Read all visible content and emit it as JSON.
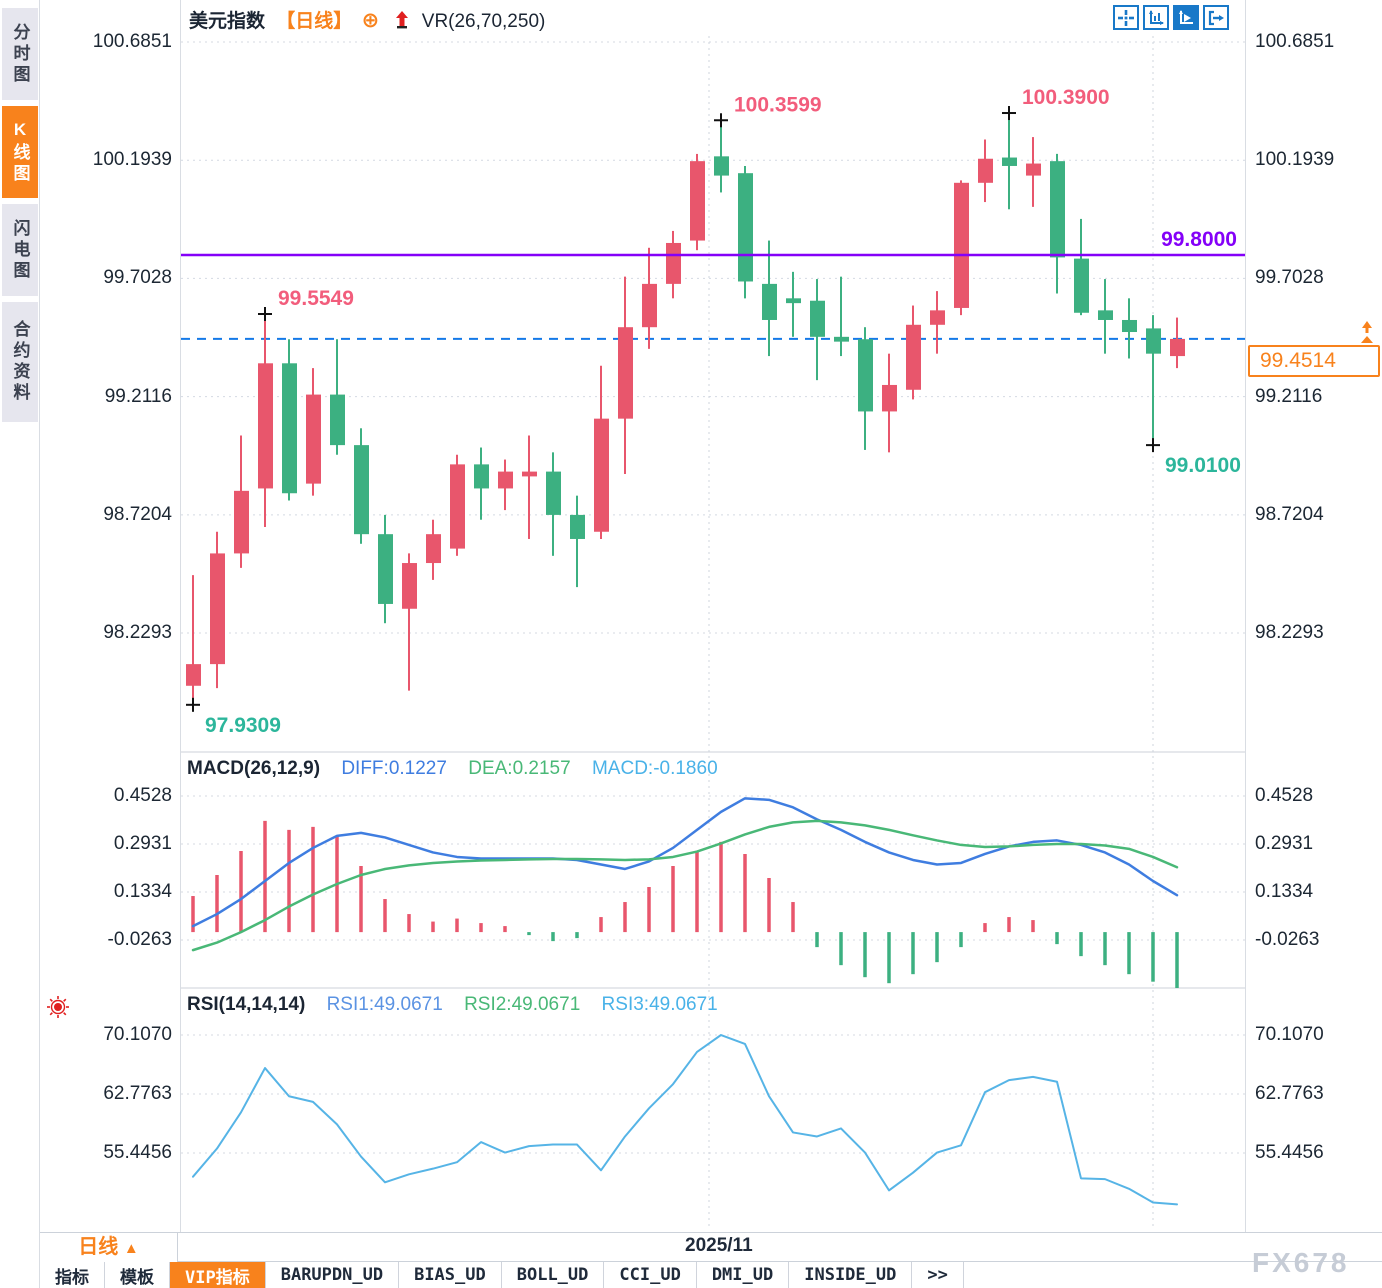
{
  "header": {
    "symbol": "美元指数",
    "period_tag": "【日线】",
    "add_icon": "⊕",
    "indicator_label": "VR(26,70,250)"
  },
  "toolbar": {
    "icons": [
      {
        "name": "crosshair-icon",
        "active": false
      },
      {
        "name": "axis-scale-icon",
        "active": false
      },
      {
        "name": "axis-play-icon",
        "active": true
      },
      {
        "name": "exit-right-icon",
        "active": false
      }
    ]
  },
  "sidebar": {
    "items": [
      {
        "label": "分时图",
        "active": false
      },
      {
        "label": "K线图",
        "active": true
      },
      {
        "label": "闪电图",
        "active": false
      },
      {
        "label": "合约资料",
        "active": false
      }
    ]
  },
  "price_marker": {
    "value": "99.4514"
  },
  "level_line": {
    "label": "99.8000",
    "value": 99.8
  },
  "bottom": {
    "period_label": "日线",
    "period_arrow": "▲",
    "date_label": "2025/11",
    "watermark": "FX678",
    "tabs": [
      {
        "label": "指标",
        "active": false
      },
      {
        "label": "模板",
        "active": false
      },
      {
        "label": "VIP指标",
        "active": true
      },
      {
        "label": "BARUPDN_UD",
        "active": false
      },
      {
        "label": "BIAS_UD",
        "active": false
      },
      {
        "label": "BOLL_UD",
        "active": false
      },
      {
        "label": "CCI_UD",
        "active": false
      },
      {
        "label": "DMI_UD",
        "active": false
      },
      {
        "label": "INSIDE_UD",
        "active": false
      },
      {
        "label": "&gt;&gt;",
        "active": false
      }
    ]
  },
  "colors": {
    "up": "#e8566c",
    "down": "#3cb081",
    "purple_line": "#8400f8",
    "current_line": "#1479e8",
    "orange": "#f8821c",
    "diff_line": "#3f7de0",
    "dea_line": "#49b877",
    "macd_value_text": "#49b2e8",
    "rsi_line": "#56b4e6",
    "annotation_high": "#f25d7c",
    "annotation_low": "#2cb69b",
    "axis_text": "#1c2733",
    "grid": "#d4d9e2",
    "icon_blue": "#1878c8",
    "cross_marker": "#111111"
  },
  "chart_data": [
    {
      "type": "candlestick",
      "title": "美元指数 日线",
      "y_ticks": [
        "100.6851",
        "100.1939",
        "99.7028",
        "99.2116",
        "98.7204",
        "98.2293"
      ],
      "horizontal_level_line": 99.8,
      "current_price_line": 99.4514,
      "annotations": [
        {
          "text": "99.5549",
          "candle_index": 3,
          "at": "high",
          "kind": "high"
        },
        {
          "text": "97.9309",
          "candle_index": 0,
          "at": "low",
          "kind": "low"
        },
        {
          "text": "100.3599",
          "candle_index": 22,
          "at": "high",
          "kind": "high"
        },
        {
          "text": "100.3900",
          "candle_index": 34,
          "at": "high",
          "kind": "high"
        },
        {
          "text": "99.0100",
          "candle_index": 40,
          "at": "low",
          "kind": "low"
        }
      ],
      "ohlc": [
        [
          98.01,
          98.47,
          97.9309,
          98.1
        ],
        [
          98.1,
          98.65,
          98.0,
          98.56
        ],
        [
          98.56,
          99.05,
          98.5,
          98.82
        ],
        [
          98.83,
          99.5549,
          98.67,
          99.35
        ],
        [
          99.35,
          99.45,
          98.78,
          98.81
        ],
        [
          98.85,
          99.33,
          98.8,
          99.22
        ],
        [
          99.22,
          99.45,
          98.97,
          99.01
        ],
        [
          99.01,
          99.08,
          98.6,
          98.64
        ],
        [
          98.64,
          98.72,
          98.27,
          98.35
        ],
        [
          98.33,
          98.56,
          97.99,
          98.52
        ],
        [
          98.52,
          98.7,
          98.45,
          98.64
        ],
        [
          98.58,
          98.97,
          98.55,
          98.93
        ],
        [
          98.93,
          99.0,
          98.7,
          98.83
        ],
        [
          98.83,
          98.95,
          98.74,
          98.9
        ],
        [
          98.88,
          99.05,
          98.62,
          98.9
        ],
        [
          98.9,
          98.98,
          98.55,
          98.72
        ],
        [
          98.72,
          98.8,
          98.42,
          98.62
        ],
        [
          98.65,
          99.34,
          98.62,
          99.12
        ],
        [
          99.12,
          99.71,
          98.89,
          99.5
        ],
        [
          99.5,
          99.83,
          99.41,
          99.68
        ],
        [
          99.68,
          99.9,
          99.62,
          99.85
        ],
        [
          99.86,
          100.22,
          99.82,
          100.19
        ],
        [
          100.21,
          100.3599,
          100.06,
          100.13
        ],
        [
          100.14,
          100.17,
          99.62,
          99.69
        ],
        [
          99.68,
          99.86,
          99.38,
          99.53
        ],
        [
          99.62,
          99.73,
          99.46,
          99.6
        ],
        [
          99.61,
          99.7,
          99.28,
          99.46
        ],
        [
          99.46,
          99.71,
          99.38,
          99.44
        ],
        [
          99.45,
          99.5,
          98.99,
          99.15
        ],
        [
          99.15,
          99.39,
          98.98,
          99.26
        ],
        [
          99.24,
          99.59,
          99.2,
          99.51
        ],
        [
          99.51,
          99.65,
          99.39,
          99.57
        ],
        [
          99.58,
          100.11,
          99.55,
          100.1
        ],
        [
          100.1,
          100.28,
          100.02,
          100.2
        ],
        [
          100.205,
          100.39,
          99.99,
          100.17
        ],
        [
          100.13,
          100.29,
          100.0,
          100.18
        ],
        [
          100.19,
          100.22,
          99.64,
          99.79
        ],
        [
          99.785,
          99.95,
          99.55,
          99.56
        ],
        [
          99.57,
          99.7,
          99.39,
          99.53
        ],
        [
          99.53,
          99.62,
          99.37,
          99.48
        ],
        [
          99.495,
          99.55,
          99.01,
          99.39
        ],
        [
          99.38,
          99.54,
          99.33,
          99.4514
        ]
      ]
    },
    {
      "type": "bar",
      "name": "MACD",
      "params_label": "MACD(26,12,9)",
      "diff_label": "DIFF:0.1227",
      "dea_label": "DEA:0.2157",
      "macd_label": "MACD:-0.1860",
      "y_ticks": [
        "0.4528",
        "0.2931",
        "0.1334",
        "-0.0263"
      ],
      "histogram": [
        0.12,
        0.19,
        0.27,
        0.37,
        0.34,
        0.35,
        0.32,
        0.22,
        0.11,
        0.06,
        0.035,
        0.045,
        0.03,
        0.02,
        -0.01,
        -0.03,
        -0.02,
        0.05,
        0.1,
        0.15,
        0.22,
        0.27,
        0.3,
        0.26,
        0.18,
        0.1,
        -0.05,
        -0.11,
        -0.15,
        -0.17,
        -0.14,
        -0.1,
        -0.05,
        0.03,
        0.05,
        0.04,
        -0.04,
        -0.08,
        -0.11,
        -0.14,
        -0.165,
        -0.186
      ],
      "diff_series": [
        0.02,
        0.06,
        0.11,
        0.17,
        0.23,
        0.28,
        0.32,
        0.33,
        0.315,
        0.29,
        0.265,
        0.25,
        0.245,
        0.245,
        0.245,
        0.245,
        0.24,
        0.225,
        0.21,
        0.235,
        0.28,
        0.34,
        0.4,
        0.445,
        0.44,
        0.415,
        0.375,
        0.34,
        0.3,
        0.265,
        0.24,
        0.225,
        0.23,
        0.26,
        0.285,
        0.3,
        0.305,
        0.29,
        0.265,
        0.225,
        0.17,
        0.1227
      ],
      "dea_series": [
        -0.06,
        -0.035,
        0.0,
        0.04,
        0.085,
        0.125,
        0.16,
        0.19,
        0.21,
        0.222,
        0.23,
        0.235,
        0.238,
        0.24,
        0.242,
        0.243,
        0.243,
        0.242,
        0.24,
        0.242,
        0.25,
        0.268,
        0.295,
        0.325,
        0.35,
        0.365,
        0.37,
        0.365,
        0.355,
        0.34,
        0.322,
        0.305,
        0.29,
        0.283,
        0.285,
        0.29,
        0.293,
        0.293,
        0.288,
        0.277,
        0.25,
        0.2157
      ]
    },
    {
      "type": "line",
      "name": "RSI",
      "params_label": "RSI(14,14,14)",
      "rsi1_label": "RSI1:49.0671",
      "rsi2_label": "RSI2:49.0671",
      "rsi3_label": "RSI3:49.0671",
      "y_ticks": [
        "70.1070",
        "62.7763",
        "55.4456"
      ],
      "values": [
        52.5,
        56.0,
        60.5,
        66.0,
        62.5,
        61.8,
        59.0,
        55.0,
        51.8,
        52.8,
        53.5,
        54.3,
        56.8,
        55.5,
        56.3,
        56.5,
        56.5,
        53.3,
        57.5,
        61.0,
        64.0,
        68.0,
        70.107,
        69.0,
        62.5,
        58.0,
        57.5,
        58.5,
        55.5,
        50.8,
        53.0,
        55.5,
        56.4,
        63.0,
        64.5,
        64.9,
        64.3,
        52.3,
        52.2,
        51.0,
        49.3,
        49.0671
      ]
    }
  ]
}
